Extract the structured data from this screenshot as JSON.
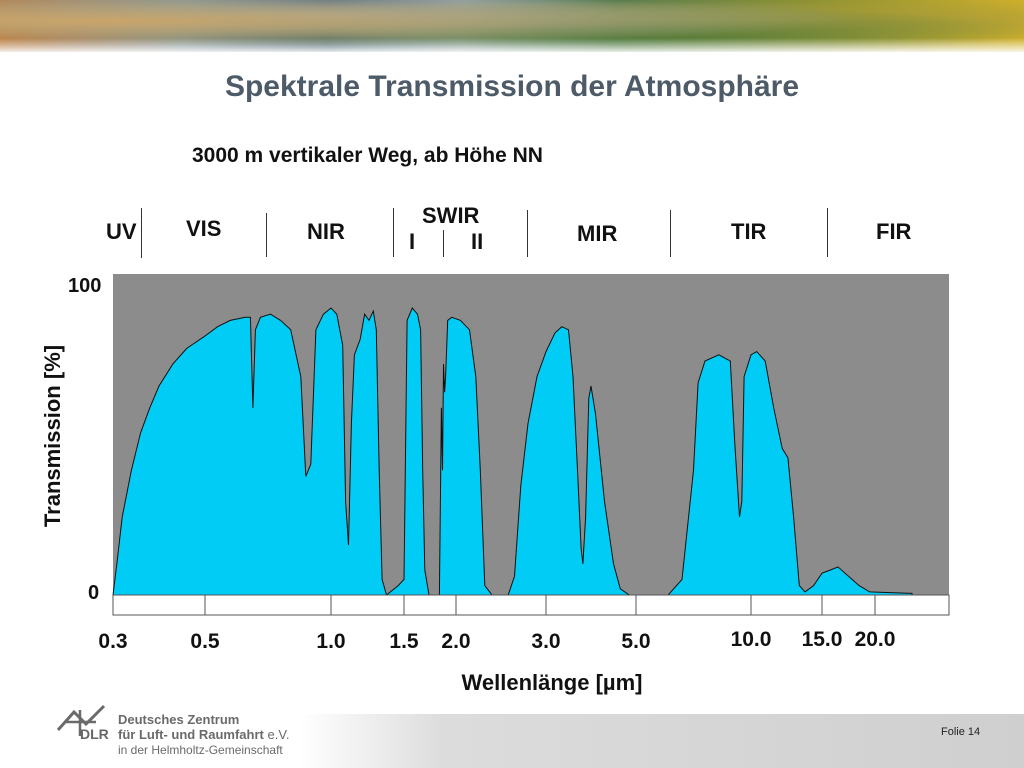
{
  "header": {
    "title": "Spektrale Transmission der Atmosphäre",
    "subtitle": "3000 m vertikaler Weg, ab Höhe NN"
  },
  "bands": [
    {
      "label": "UV"
    },
    {
      "label": "VIS"
    },
    {
      "label": "NIR"
    },
    {
      "label": "SWIR"
    },
    {
      "label": "I"
    },
    {
      "label": "II"
    },
    {
      "label": "MIR"
    },
    {
      "label": "TIR"
    },
    {
      "label": "FIR"
    }
  ],
  "chart_data": {
    "type": "area",
    "title": "Spektrale Transmission der Atmosphäre",
    "subtitle": "3000 m vertikaler Weg, ab Höhe NN",
    "xlabel": "Wellenlänge [µm]",
    "ylabel": "Transmission [%]",
    "ylim": [
      0,
      100
    ],
    "yticks": [
      "0",
      "100"
    ],
    "xticks": [
      "0.3",
      "0.5",
      "1.0",
      "1.5",
      "2.0",
      "3.0",
      "5.0",
      "10.0",
      "15.0",
      "20.0"
    ],
    "fill_color": "#00ccf5",
    "background_color": "#8c8c8c",
    "series": [
      {
        "values": [
          [
            0.3,
            0
          ],
          [
            0.31,
            12
          ],
          [
            0.32,
            25
          ],
          [
            0.34,
            40
          ],
          [
            0.36,
            52
          ],
          [
            0.38,
            60
          ],
          [
            0.4,
            67
          ],
          [
            0.43,
            74
          ],
          [
            0.46,
            79
          ],
          [
            0.5,
            83
          ],
          [
            0.55,
            86
          ],
          [
            0.6,
            88
          ],
          [
            0.66,
            89
          ],
          [
            0.68,
            89
          ],
          [
            0.69,
            60
          ],
          [
            0.7,
            85
          ],
          [
            0.72,
            89
          ],
          [
            0.76,
            90
          ],
          [
            0.8,
            88
          ],
          [
            0.84,
            85
          ],
          [
            0.88,
            70
          ],
          [
            0.9,
            38
          ],
          [
            0.92,
            42
          ],
          [
            0.94,
            85
          ],
          [
            0.97,
            90
          ],
          [
            1.0,
            92
          ],
          [
            1.04,
            90
          ],
          [
            1.08,
            80
          ],
          [
            1.1,
            30
          ],
          [
            1.12,
            16
          ],
          [
            1.14,
            55
          ],
          [
            1.16,
            77
          ],
          [
            1.2,
            82
          ],
          [
            1.23,
            90
          ],
          [
            1.26,
            88
          ],
          [
            1.29,
            91
          ],
          [
            1.31,
            85
          ],
          [
            1.33,
            40
          ],
          [
            1.35,
            5
          ],
          [
            1.38,
            0
          ],
          [
            1.46,
            3
          ],
          [
            1.5,
            5
          ],
          [
            1.53,
            88
          ],
          [
            1.58,
            92
          ],
          [
            1.63,
            90
          ],
          [
            1.66,
            85
          ],
          [
            1.68,
            40
          ],
          [
            1.7,
            8
          ],
          [
            1.74,
            0
          ],
          [
            1.84,
            0
          ],
          [
            1.86,
            60
          ],
          [
            1.87,
            40
          ],
          [
            1.88,
            74
          ],
          [
            1.89,
            65
          ],
          [
            1.9,
            70
          ],
          [
            1.92,
            88
          ],
          [
            1.96,
            89
          ],
          [
            2.05,
            88
          ],
          [
            2.15,
            85
          ],
          [
            2.22,
            70
          ],
          [
            2.27,
            40
          ],
          [
            2.32,
            3
          ],
          [
            2.4,
            0
          ],
          [
            2.58,
            0
          ],
          [
            2.65,
            6
          ],
          [
            2.72,
            35
          ],
          [
            2.8,
            55
          ],
          [
            2.9,
            70
          ],
          [
            3.0,
            78
          ],
          [
            3.2,
            84
          ],
          [
            3.35,
            86
          ],
          [
            3.5,
            85
          ],
          [
            3.6,
            70
          ],
          [
            3.7,
            40
          ],
          [
            3.78,
            15
          ],
          [
            3.82,
            10
          ],
          [
            3.88,
            25
          ],
          [
            3.95,
            63
          ],
          [
            4.0,
            67
          ],
          [
            4.1,
            58
          ],
          [
            4.3,
            30
          ],
          [
            4.5,
            10
          ],
          [
            4.65,
            2
          ],
          [
            4.85,
            0
          ],
          [
            6.4,
            0
          ],
          [
            7.0,
            5
          ],
          [
            7.5,
            40
          ],
          [
            7.7,
            68
          ],
          [
            8.0,
            75
          ],
          [
            8.6,
            77
          ],
          [
            9.1,
            75
          ],
          [
            9.3,
            48
          ],
          [
            9.5,
            25
          ],
          [
            9.6,
            30
          ],
          [
            9.7,
            70
          ],
          [
            10.0,
            77
          ],
          [
            10.4,
            78
          ],
          [
            11.0,
            75
          ],
          [
            11.6,
            60
          ],
          [
            12.2,
            47
          ],
          [
            12.6,
            44
          ],
          [
            13.0,
            25
          ],
          [
            13.4,
            3
          ],
          [
            13.8,
            1
          ],
          [
            14.4,
            3
          ],
          [
            15.0,
            7
          ],
          [
            15.8,
            8
          ],
          [
            16.5,
            9
          ],
          [
            17.5,
            6
          ],
          [
            18.5,
            3
          ],
          [
            19.5,
            1
          ],
          [
            20.5,
            0.5
          ]
        ]
      }
    ]
  },
  "footer": {
    "org_line1": "Deutsches Zentrum",
    "org_line2": "für Luft- und Raumfahrt",
    "org_suffix": "e.V.",
    "org_line3": "in der Helmholtz-Gemeinschaft",
    "logo_word": "DLR",
    "page_label": "Folie 14"
  }
}
